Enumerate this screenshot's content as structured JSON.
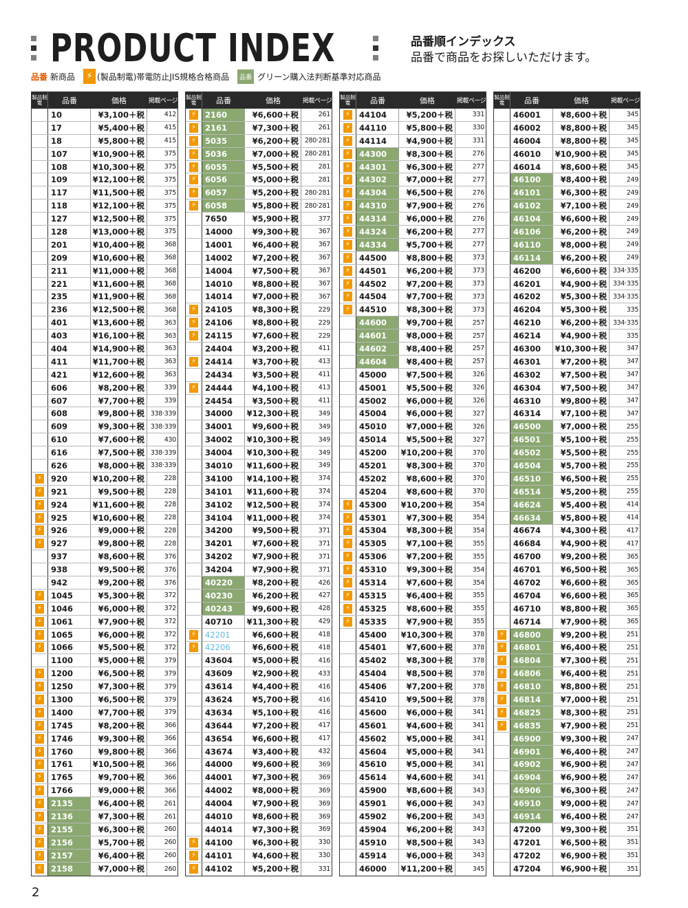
{
  "header": {
    "title": "PRODUCT INDEX",
    "subtitle": "品番順インデックス",
    "note": "品番で商品をお探しいただけます。"
  },
  "legend": {
    "new_marker": "品番",
    "new_label": "新商品",
    "bolt_label": "(製品制電)帯電防止JIS規格合格商品",
    "green_marker": "品番",
    "green_label": "グリーン購入法判断基準対応商品"
  },
  "columns_header": {
    "icon": "製品制電",
    "code": "品番",
    "price": "価格",
    "page": "掲載ページ"
  },
  "colors": {
    "green": "#8aa870",
    "bolt": "#f29800",
    "blue": "#5fb7e5"
  },
  "columns": [
    [
      [
        "10",
        "¥3,100＋税",
        "412",
        ""
      ],
      [
        "17",
        "¥5,400＋税",
        "415",
        ""
      ],
      [
        "18",
        "¥5,800＋税",
        "415",
        ""
      ],
      [
        "107",
        "¥10,900＋税",
        "375",
        ""
      ],
      [
        "108",
        "¥10,300＋税",
        "375",
        ""
      ],
      [
        "109",
        "¥12,100＋税",
        "375",
        ""
      ],
      [
        "117",
        "¥11,500＋税",
        "375",
        ""
      ],
      [
        "118",
        "¥12,100＋税",
        "375",
        ""
      ],
      [
        "127",
        "¥12,500＋税",
        "375",
        ""
      ],
      [
        "128",
        "¥13,000＋税",
        "375",
        ""
      ],
      [
        "201",
        "¥10,400＋税",
        "368",
        ""
      ],
      [
        "209",
        "¥10,600＋税",
        "368",
        ""
      ],
      [
        "211",
        "¥11,000＋税",
        "368",
        ""
      ],
      [
        "221",
        "¥11,600＋税",
        "368",
        ""
      ],
      [
        "235",
        "¥11,900＋税",
        "368",
        ""
      ],
      [
        "236",
        "¥12,500＋税",
        "368",
        ""
      ],
      [
        "401",
        "¥13,600＋税",
        "363",
        ""
      ],
      [
        "403",
        "¥16,100＋税",
        "363",
        ""
      ],
      [
        "404",
        "¥14,900＋税",
        "363",
        ""
      ],
      [
        "411",
        "¥11,700＋税",
        "363",
        ""
      ],
      [
        "421",
        "¥12,600＋税",
        "363",
        ""
      ],
      [
        "606",
        "¥8,200＋税",
        "339",
        ""
      ],
      [
        "607",
        "¥7,700＋税",
        "339",
        ""
      ],
      [
        "608",
        "¥9,800＋税",
        "338·339",
        ""
      ],
      [
        "609",
        "¥9,300＋税",
        "338·339",
        ""
      ],
      [
        "610",
        "¥7,600＋税",
        "430",
        ""
      ],
      [
        "616",
        "¥7,500＋税",
        "338·339",
        ""
      ],
      [
        "626",
        "¥8,000＋税",
        "338·339",
        ""
      ],
      [
        "920",
        "¥10,200＋税",
        "228",
        "b"
      ],
      [
        "921",
        "¥9,500＋税",
        "228",
        "b"
      ],
      [
        "924",
        "¥11,600＋税",
        "228",
        "b"
      ],
      [
        "925",
        "¥10,600＋税",
        "228",
        "b"
      ],
      [
        "926",
        "¥9,000＋税",
        "228",
        "b"
      ],
      [
        "927",
        "¥9,800＋税",
        "228",
        "b"
      ],
      [
        "937",
        "¥8,600＋税",
        "376",
        ""
      ],
      [
        "938",
        "¥9,500＋税",
        "376",
        ""
      ],
      [
        "942",
        "¥9,200＋税",
        "376",
        ""
      ],
      [
        "1045",
        "¥5,300＋税",
        "372",
        "b"
      ],
      [
        "1046",
        "¥6,000＋税",
        "372",
        "b"
      ],
      [
        "1061",
        "¥7,900＋税",
        "372",
        "b"
      ],
      [
        "1065",
        "¥6,000＋税",
        "372",
        "b"
      ],
      [
        "1066",
        "¥5,500＋税",
        "372",
        "b"
      ],
      [
        "1100",
        "¥5,000＋税",
        "379",
        ""
      ],
      [
        "1200",
        "¥6,500＋税",
        "379",
        "b"
      ],
      [
        "1250",
        "¥7,300＋税",
        "379",
        "b"
      ],
      [
        "1300",
        "¥6,500＋税",
        "379",
        "b"
      ],
      [
        "1400",
        "¥7,700＋税",
        "379",
        "b"
      ],
      [
        "1745",
        "¥8,200＋税",
        "366",
        "b"
      ],
      [
        "1746",
        "¥9,300＋税",
        "366",
        "b"
      ],
      [
        "1760",
        "¥9,800＋税",
        "366",
        "b"
      ],
      [
        "1761",
        "¥10,500＋税",
        "366",
        "b"
      ],
      [
        "1765",
        "¥9,700＋税",
        "366",
        "b"
      ],
      [
        "1766",
        "¥9,000＋税",
        "366",
        "b"
      ],
      [
        "2135",
        "¥6,400＋税",
        "261",
        "bg"
      ],
      [
        "2136",
        "¥7,300＋税",
        "261",
        "bg"
      ],
      [
        "2155",
        "¥6,300＋税",
        "260",
        "bg"
      ],
      [
        "2156",
        "¥5,700＋税",
        "260",
        "bg"
      ],
      [
        "2157",
        "¥6,400＋税",
        "260",
        "bg"
      ],
      [
        "2158",
        "¥7,000＋税",
        "260",
        "bg"
      ]
    ],
    [
      [
        "2160",
        "¥6,600＋税",
        "261",
        "bg"
      ],
      [
        "2161",
        "¥7,300＋税",
        "261",
        "bg"
      ],
      [
        "5035",
        "¥6,200＋税",
        "280·281",
        "bg"
      ],
      [
        "5036",
        "¥7,000＋税",
        "280·281",
        "bg"
      ],
      [
        "6055",
        "¥5,500＋税",
        "281",
        "bg"
      ],
      [
        "6056",
        "¥5,000＋税",
        "281",
        "bg"
      ],
      [
        "6057",
        "¥5,200＋税",
        "280·281",
        "bg"
      ],
      [
        "6058",
        "¥5,800＋税",
        "280·281",
        "bg"
      ],
      [
        "7650",
        "¥5,900＋税",
        "377",
        ""
      ],
      [
        "14000",
        "¥9,300＋税",
        "367",
        ""
      ],
      [
        "14001",
        "¥6,400＋税",
        "367",
        ""
      ],
      [
        "14002",
        "¥7,200＋税",
        "367",
        ""
      ],
      [
        "14004",
        "¥7,500＋税",
        "367",
        ""
      ],
      [
        "14010",
        "¥8,800＋税",
        "367",
        ""
      ],
      [
        "14014",
        "¥7,000＋税",
        "367",
        ""
      ],
      [
        "24105",
        "¥8,300＋税",
        "229",
        "b"
      ],
      [
        "24106",
        "¥8,800＋税",
        "229",
        "b"
      ],
      [
        "24115",
        "¥7,600＋税",
        "229",
        "b"
      ],
      [
        "24404",
        "¥3,200＋税",
        "411",
        ""
      ],
      [
        "24414",
        "¥3,700＋税",
        "413",
        "b"
      ],
      [
        "24434",
        "¥3,500＋税",
        "411",
        ""
      ],
      [
        "24444",
        "¥4,100＋税",
        "413",
        "b"
      ],
      [
        "24454",
        "¥3,500＋税",
        "411",
        ""
      ],
      [
        "34000",
        "¥12,300＋税",
        "349",
        ""
      ],
      [
        "34001",
        "¥9,600＋税",
        "349",
        ""
      ],
      [
        "34002",
        "¥10,300＋税",
        "349",
        ""
      ],
      [
        "34004",
        "¥10,300＋税",
        "349",
        ""
      ],
      [
        "34010",
        "¥11,600＋税",
        "349",
        ""
      ],
      [
        "34100",
        "¥14,100＋税",
        "374",
        ""
      ],
      [
        "34101",
        "¥11,600＋税",
        "374",
        ""
      ],
      [
        "34102",
        "¥12,500＋税",
        "374",
        ""
      ],
      [
        "34104",
        "¥11,000＋税",
        "374",
        ""
      ],
      [
        "34200",
        "¥9,500＋税",
        "371",
        ""
      ],
      [
        "34201",
        "¥7,600＋税",
        "371",
        ""
      ],
      [
        "34202",
        "¥7,900＋税",
        "371",
        ""
      ],
      [
        "34204",
        "¥7,900＋税",
        "371",
        ""
      ],
      [
        "40220",
        "¥8,200＋税",
        "426",
        "g"
      ],
      [
        "40230",
        "¥6,200＋税",
        "427",
        "g"
      ],
      [
        "40243",
        "¥9,600＋税",
        "428",
        "g"
      ],
      [
        "40710",
        "¥11,300＋税",
        "429",
        ""
      ],
      [
        "42201",
        "¥6,600＋税",
        "418",
        "blue"
      ],
      [
        "42206",
        "¥6,600＋税",
        "418",
        "blue"
      ],
      [
        "43604",
        "¥5,000＋税",
        "416",
        ""
      ],
      [
        "43609",
        "¥2,900＋税",
        "433",
        ""
      ],
      [
        "43614",
        "¥4,400＋税",
        "416",
        ""
      ],
      [
        "43624",
        "¥5,700＋税",
        "416",
        ""
      ],
      [
        "43634",
        "¥5,100＋税",
        "416",
        ""
      ],
      [
        "43644",
        "¥7,200＋税",
        "417",
        ""
      ],
      [
        "43654",
        "¥6,600＋税",
        "417",
        ""
      ],
      [
        "43674",
        "¥3,400＋税",
        "432",
        ""
      ],
      [
        "44000",
        "¥9,600＋税",
        "369",
        ""
      ],
      [
        "44001",
        "¥7,300＋税",
        "369",
        ""
      ],
      [
        "44002",
        "¥8,000＋税",
        "369",
        ""
      ],
      [
        "44004",
        "¥7,900＋税",
        "369",
        ""
      ],
      [
        "44010",
        "¥8,600＋税",
        "369",
        ""
      ],
      [
        "44014",
        "¥7,300＋税",
        "369",
        ""
      ],
      [
        "44100",
        "¥6,300＋税",
        "330",
        "b"
      ],
      [
        "44101",
        "¥4,600＋税",
        "330",
        "b"
      ],
      [
        "44102",
        "¥5,200＋税",
        "331",
        "b"
      ]
    ],
    [
      [
        "44104",
        "¥5,200＋税",
        "331",
        "b"
      ],
      [
        "44110",
        "¥5,800＋税",
        "330",
        "b"
      ],
      [
        "44114",
        "¥4,900＋税",
        "331",
        "b"
      ],
      [
        "44300",
        "¥8,300＋税",
        "276",
        "bg"
      ],
      [
        "44301",
        "¥6,300＋税",
        "277",
        "bg"
      ],
      [
        "44302",
        "¥7,000＋税",
        "277",
        "bg"
      ],
      [
        "44304",
        "¥6,500＋税",
        "276",
        "bg"
      ],
      [
        "44310",
        "¥7,900＋税",
        "276",
        "bg"
      ],
      [
        "44314",
        "¥6,000＋税",
        "276",
        "bg"
      ],
      [
        "44324",
        "¥6,200＋税",
        "277",
        "bg"
      ],
      [
        "44334",
        "¥5,700＋税",
        "277",
        "bg"
      ],
      [
        "44500",
        "¥8,800＋税",
        "373",
        "b"
      ],
      [
        "44501",
        "¥6,200＋税",
        "373",
        "b"
      ],
      [
        "44502",
        "¥7,200＋税",
        "373",
        "b"
      ],
      [
        "44504",
        "¥7,700＋税",
        "373",
        "b"
      ],
      [
        "44510",
        "¥8,300＋税",
        "373",
        "b"
      ],
      [
        "44600",
        "¥9,700＋税",
        "257",
        "g"
      ],
      [
        "44601",
        "¥8,000＋税",
        "257",
        "g"
      ],
      [
        "44602",
        "¥8,400＋税",
        "257",
        "g"
      ],
      [
        "44604",
        "¥8,400＋税",
        "257",
        "g"
      ],
      [
        "45000",
        "¥7,500＋税",
        "326",
        ""
      ],
      [
        "45001",
        "¥5,500＋税",
        "326",
        ""
      ],
      [
        "45002",
        "¥6,000＋税",
        "326",
        ""
      ],
      [
        "45004",
        "¥6,000＋税",
        "327",
        ""
      ],
      [
        "45010",
        "¥7,000＋税",
        "326",
        ""
      ],
      [
        "45014",
        "¥5,500＋税",
        "327",
        ""
      ],
      [
        "45200",
        "¥10,200＋税",
        "370",
        ""
      ],
      [
        "45201",
        "¥8,300＋税",
        "370",
        ""
      ],
      [
        "45202",
        "¥8,600＋税",
        "370",
        ""
      ],
      [
        "45204",
        "¥8,600＋税",
        "370",
        ""
      ],
      [
        "45300",
        "¥10,200＋税",
        "354",
        "b"
      ],
      [
        "45301",
        "¥7,300＋税",
        "354",
        "b"
      ],
      [
        "45304",
        "¥8,300＋税",
        "354",
        "b"
      ],
      [
        "45305",
        "¥7,100＋税",
        "355",
        "b"
      ],
      [
        "45306",
        "¥7,200＋税",
        "355",
        "b"
      ],
      [
        "45310",
        "¥9,300＋税",
        "354",
        "b"
      ],
      [
        "45314",
        "¥7,600＋税",
        "354",
        "b"
      ],
      [
        "45315",
        "¥6,400＋税",
        "355",
        "b"
      ],
      [
        "45325",
        "¥8,600＋税",
        "355",
        "b"
      ],
      [
        "45335",
        "¥7,900＋税",
        "355",
        "b"
      ],
      [
        "45400",
        "¥10,300＋税",
        "378",
        ""
      ],
      [
        "45401",
        "¥7,600＋税",
        "378",
        ""
      ],
      [
        "45402",
        "¥8,300＋税",
        "378",
        ""
      ],
      [
        "45404",
        "¥8,500＋税",
        "378",
        ""
      ],
      [
        "45406",
        "¥7,200＋税",
        "378",
        ""
      ],
      [
        "45410",
        "¥9,500＋税",
        "378",
        ""
      ],
      [
        "45600",
        "¥6,000＋税",
        "341",
        ""
      ],
      [
        "45601",
        "¥4,600＋税",
        "341",
        ""
      ],
      [
        "45602",
        "¥5,000＋税",
        "341",
        ""
      ],
      [
        "45604",
        "¥5,000＋税",
        "341",
        ""
      ],
      [
        "45610",
        "¥5,000＋税",
        "341",
        ""
      ],
      [
        "45614",
        "¥4,600＋税",
        "341",
        ""
      ],
      [
        "45900",
        "¥8,600＋税",
        "343",
        ""
      ],
      [
        "45901",
        "¥6,000＋税",
        "343",
        ""
      ],
      [
        "45902",
        "¥6,200＋税",
        "343",
        ""
      ],
      [
        "45904",
        "¥6,200＋税",
        "343",
        ""
      ],
      [
        "45910",
        "¥8,500＋税",
        "343",
        ""
      ],
      [
        "45914",
        "¥6,000＋税",
        "343",
        ""
      ],
      [
        "46000",
        "¥11,200＋税",
        "345",
        ""
      ]
    ],
    [
      [
        "46001",
        "¥8,600＋税",
        "345",
        ""
      ],
      [
        "46002",
        "¥8,800＋税",
        "345",
        ""
      ],
      [
        "46004",
        "¥8,800＋税",
        "345",
        ""
      ],
      [
        "46010",
        "¥10,900＋税",
        "345",
        ""
      ],
      [
        "46014",
        "¥8,600＋税",
        "345",
        ""
      ],
      [
        "46100",
        "¥8,400＋税",
        "249",
        "g"
      ],
      [
        "46101",
        "¥6,300＋税",
        "249",
        "g"
      ],
      [
        "46102",
        "¥7,100＋税",
        "249",
        "g"
      ],
      [
        "46104",
        "¥6,600＋税",
        "249",
        "g"
      ],
      [
        "46106",
        "¥6,200＋税",
        "249",
        "g"
      ],
      [
        "46110",
        "¥8,000＋税",
        "249",
        "g"
      ],
      [
        "46114",
        "¥6,200＋税",
        "249",
        "g"
      ],
      [
        "46200",
        "¥6,600＋税",
        "334·335",
        ""
      ],
      [
        "46201",
        "¥4,900＋税",
        "334·335",
        ""
      ],
      [
        "46202",
        "¥5,300＋税",
        "334·335",
        ""
      ],
      [
        "46204",
        "¥5,300＋税",
        "335",
        ""
      ],
      [
        "46210",
        "¥6,200＋税",
        "334·335",
        ""
      ],
      [
        "46214",
        "¥4,900＋税",
        "335",
        ""
      ],
      [
        "46300",
        "¥10,300＋税",
        "347",
        ""
      ],
      [
        "46301",
        "¥7,200＋税",
        "347",
        ""
      ],
      [
        "46302",
        "¥7,500＋税",
        "347",
        ""
      ],
      [
        "46304",
        "¥7,500＋税",
        "347",
        ""
      ],
      [
        "46310",
        "¥9,800＋税",
        "347",
        ""
      ],
      [
        "46314",
        "¥7,100＋税",
        "347",
        ""
      ],
      [
        "46500",
        "¥7,000＋税",
        "255",
        "g"
      ],
      [
        "46501",
        "¥5,100＋税",
        "255",
        "g"
      ],
      [
        "46502",
        "¥5,500＋税",
        "255",
        "g"
      ],
      [
        "46504",
        "¥5,700＋税",
        "255",
        "g"
      ],
      [
        "46510",
        "¥6,500＋税",
        "255",
        "g"
      ],
      [
        "46514",
        "¥5,200＋税",
        "255",
        "g"
      ],
      [
        "46624",
        "¥5,400＋税",
        "414",
        "g"
      ],
      [
        "46634",
        "¥5,800＋税",
        "414",
        "g"
      ],
      [
        "46674",
        "¥4,300＋税",
        "417",
        ""
      ],
      [
        "46684",
        "¥4,900＋税",
        "417",
        ""
      ],
      [
        "46700",
        "¥9,200＋税",
        "365",
        ""
      ],
      [
        "46701",
        "¥6,500＋税",
        "365",
        ""
      ],
      [
        "46702",
        "¥6,600＋税",
        "365",
        ""
      ],
      [
        "46704",
        "¥6,600＋税",
        "365",
        ""
      ],
      [
        "46710",
        "¥8,800＋税",
        "365",
        ""
      ],
      [
        "46714",
        "¥7,900＋税",
        "365",
        ""
      ],
      [
        "46800",
        "¥9,200＋税",
        "251",
        "bg"
      ],
      [
        "46801",
        "¥6,400＋税",
        "251",
        "bg"
      ],
      [
        "46804",
        "¥7,300＋税",
        "251",
        "bg"
      ],
      [
        "46806",
        "¥6,400＋税",
        "251",
        "bg"
      ],
      [
        "46810",
        "¥8,800＋税",
        "251",
        "bg"
      ],
      [
        "46814",
        "¥7,000＋税",
        "251",
        "bg"
      ],
      [
        "46825",
        "¥8,300＋税",
        "251",
        "bg"
      ],
      [
        "46835",
        "¥7,900＋税",
        "251",
        "bg"
      ],
      [
        "46900",
        "¥9,300＋税",
        "247",
        "g"
      ],
      [
        "46901",
        "¥6,400＋税",
        "247",
        "g"
      ],
      [
        "46902",
        "¥6,900＋税",
        "247",
        "g"
      ],
      [
        "46904",
        "¥6,900＋税",
        "247",
        "g"
      ],
      [
        "46906",
        "¥6,300＋税",
        "247",
        "g"
      ],
      [
        "46910",
        "¥9,000＋税",
        "247",
        "g"
      ],
      [
        "46914",
        "¥6,400＋税",
        "247",
        "g"
      ],
      [
        "47200",
        "¥9,300＋税",
        "351",
        ""
      ],
      [
        "47201",
        "¥6,500＋税",
        "351",
        ""
      ],
      [
        "47202",
        "¥6,900＋税",
        "351",
        ""
      ],
      [
        "47204",
        "¥6,900＋税",
        "351",
        ""
      ]
    ]
  ],
  "page_number": "2"
}
